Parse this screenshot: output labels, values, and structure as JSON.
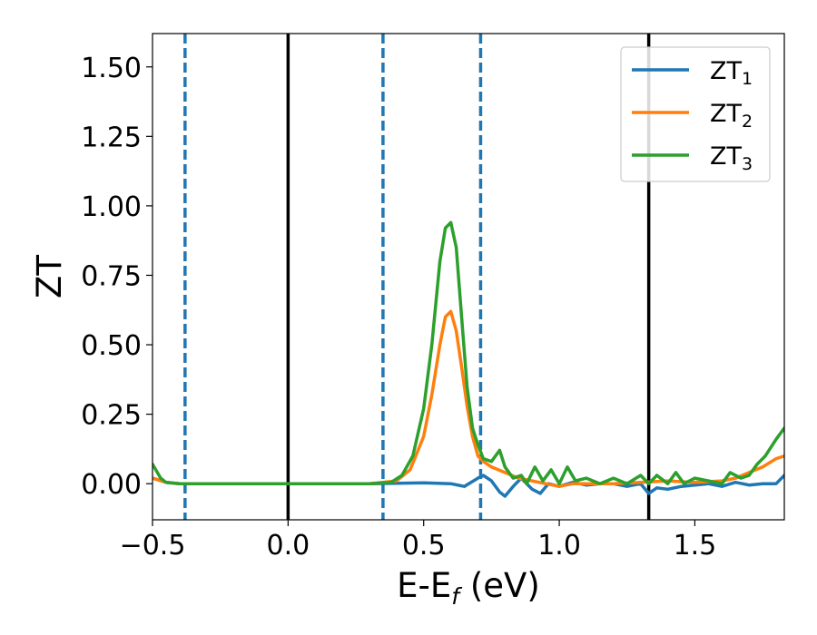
{
  "chart_data": {
    "type": "line",
    "xlabel_main": "E-E",
    "xlabel_sub": "f",
    "xlabel_unit": " (eV)",
    "ylabel": "ZT",
    "xlim": [
      -0.5,
      1.83
    ],
    "ylim": [
      -0.13,
      1.62
    ],
    "x_ticks": [
      -0.5,
      0.0,
      0.5,
      1.0,
      1.5
    ],
    "x_tick_labels": [
      "−0.5",
      "0.0",
      "0.5",
      "1.0",
      "1.5"
    ],
    "y_ticks": [
      0.0,
      0.25,
      0.5,
      0.75,
      1.0,
      1.25,
      1.5
    ],
    "y_tick_labels": [
      "0.00",
      "0.25",
      "0.50",
      "0.75",
      "1.00",
      "1.25",
      "1.50"
    ],
    "grid": false,
    "legend_position": "top-right",
    "vertical_lines": [
      {
        "x": -0.38,
        "style": "dashed",
        "color": "#1f77b4"
      },
      {
        "x": 0.0,
        "style": "solid",
        "color": "#000000"
      },
      {
        "x": 0.35,
        "style": "dashed",
        "color": "#1f77b4"
      },
      {
        "x": 0.71,
        "style": "dashed",
        "color": "#1f77b4"
      },
      {
        "x": 1.33,
        "style": "solid",
        "color": "#000000"
      }
    ],
    "series": [
      {
        "name": "ZT",
        "subscript": "1",
        "color": "#1f77b4",
        "x": [
          -0.5,
          -0.45,
          -0.4,
          -0.3,
          0.0,
          0.3,
          0.5,
          0.6,
          0.65,
          0.7,
          0.72,
          0.75,
          0.78,
          0.8,
          0.83,
          0.86,
          0.9,
          0.93,
          0.96,
          1.0,
          1.05,
          1.1,
          1.15,
          1.2,
          1.25,
          1.3,
          1.33,
          1.36,
          1.4,
          1.45,
          1.5,
          1.55,
          1.6,
          1.65,
          1.7,
          1.75,
          1.8,
          1.83
        ],
        "y": [
          0.02,
          0.005,
          0.0,
          0.0,
          0.0,
          0.0,
          0.003,
          0.0,
          -0.01,
          0.02,
          0.03,
          0.01,
          -0.03,
          -0.045,
          -0.01,
          0.02,
          -0.02,
          -0.035,
          0.0,
          -0.01,
          0.005,
          -0.005,
          0.0,
          0.0,
          -0.01,
          0.0,
          -0.035,
          -0.015,
          -0.02,
          -0.01,
          -0.005,
          0.0,
          -0.01,
          0.005,
          -0.005,
          0.0,
          0.0,
          0.03
        ]
      },
      {
        "name": "ZT",
        "subscript": "2",
        "color": "#ff7f0e",
        "x": [
          -0.5,
          -0.45,
          -0.4,
          -0.3,
          0.0,
          0.3,
          0.4,
          0.45,
          0.5,
          0.53,
          0.56,
          0.58,
          0.6,
          0.62,
          0.64,
          0.66,
          0.68,
          0.7,
          0.72,
          0.75,
          0.8,
          0.85,
          0.9,
          0.95,
          1.0,
          1.05,
          1.1,
          1.2,
          1.3,
          1.4,
          1.5,
          1.6,
          1.65,
          1.7,
          1.75,
          1.8,
          1.83
        ],
        "y": [
          0.02,
          0.005,
          0.0,
          0.0,
          0.0,
          0.0,
          0.01,
          0.05,
          0.17,
          0.32,
          0.5,
          0.6,
          0.62,
          0.55,
          0.42,
          0.28,
          0.17,
          0.1,
          0.08,
          0.06,
          0.04,
          0.02,
          0.01,
          0.0,
          -0.01,
          0.0,
          0.0,
          0.0,
          0.005,
          0.01,
          0.005,
          0.01,
          0.02,
          0.04,
          0.06,
          0.09,
          0.1
        ]
      },
      {
        "name": "ZT",
        "subscript": "3",
        "color": "#2ca02c",
        "x": [
          -0.5,
          -0.47,
          -0.45,
          -0.4,
          -0.3,
          0.0,
          0.3,
          0.38,
          0.42,
          0.46,
          0.5,
          0.53,
          0.56,
          0.58,
          0.6,
          0.62,
          0.64,
          0.66,
          0.68,
          0.7,
          0.72,
          0.75,
          0.78,
          0.8,
          0.83,
          0.86,
          0.88,
          0.91,
          0.94,
          0.97,
          1.0,
          1.03,
          1.06,
          1.1,
          1.15,
          1.2,
          1.25,
          1.3,
          1.33,
          1.36,
          1.4,
          1.43,
          1.46,
          1.5,
          1.55,
          1.6,
          1.63,
          1.67,
          1.7,
          1.73,
          1.76,
          1.8,
          1.83
        ],
        "y": [
          0.07,
          0.02,
          0.005,
          0.0,
          0.0,
          0.0,
          0.0,
          0.005,
          0.03,
          0.1,
          0.27,
          0.5,
          0.8,
          0.92,
          0.94,
          0.85,
          0.6,
          0.35,
          0.2,
          0.14,
          0.09,
          0.08,
          0.12,
          0.06,
          0.02,
          0.03,
          0.0,
          0.06,
          0.01,
          0.05,
          0.0,
          0.06,
          0.01,
          0.02,
          0.0,
          0.02,
          0.0,
          0.03,
          0.0,
          0.03,
          0.0,
          0.04,
          0.0,
          0.02,
          0.01,
          0.0,
          0.04,
          0.02,
          0.03,
          0.07,
          0.1,
          0.16,
          0.2
        ]
      }
    ]
  }
}
